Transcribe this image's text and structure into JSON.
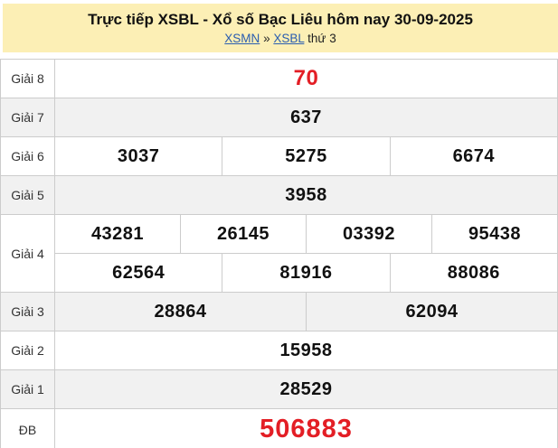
{
  "header": {
    "title": "Trực tiếp XSBL - Xổ số Bạc Liêu hôm nay 30-09-2025",
    "breadcrumb": {
      "link1": "XSMN",
      "separator": "»",
      "link2": "XSBL",
      "suffix": "thứ 3"
    }
  },
  "results": {
    "rows": [
      {
        "label": "Giải 8",
        "cells": [
          "70"
        ]
      },
      {
        "label": "Giải 7",
        "cells": [
          "637"
        ]
      },
      {
        "label": "Giải 6",
        "cells": [
          "3037",
          "5275",
          "6674"
        ]
      },
      {
        "label": "Giải 5",
        "cells": [
          "3958"
        ]
      },
      {
        "label": "Giải 4",
        "line1": [
          "43281",
          "26145",
          "03392",
          "95438"
        ],
        "line2": [
          "62564",
          "81916",
          "88086"
        ]
      },
      {
        "label": "Giải 3",
        "cells": [
          "28864",
          "62094"
        ]
      },
      {
        "label": "Giải 2",
        "cells": [
          "15958"
        ]
      },
      {
        "label": "Giải 1",
        "cells": [
          "28529"
        ]
      },
      {
        "label": "ĐB",
        "cells": [
          "506883"
        ]
      }
    ]
  },
  "colors": {
    "header_bg": "#fcefb5",
    "accent_red": "#e31e25",
    "link_blue": "#2a5db0",
    "row_alt_bg": "#f1f1f1",
    "border": "#cccccc"
  }
}
